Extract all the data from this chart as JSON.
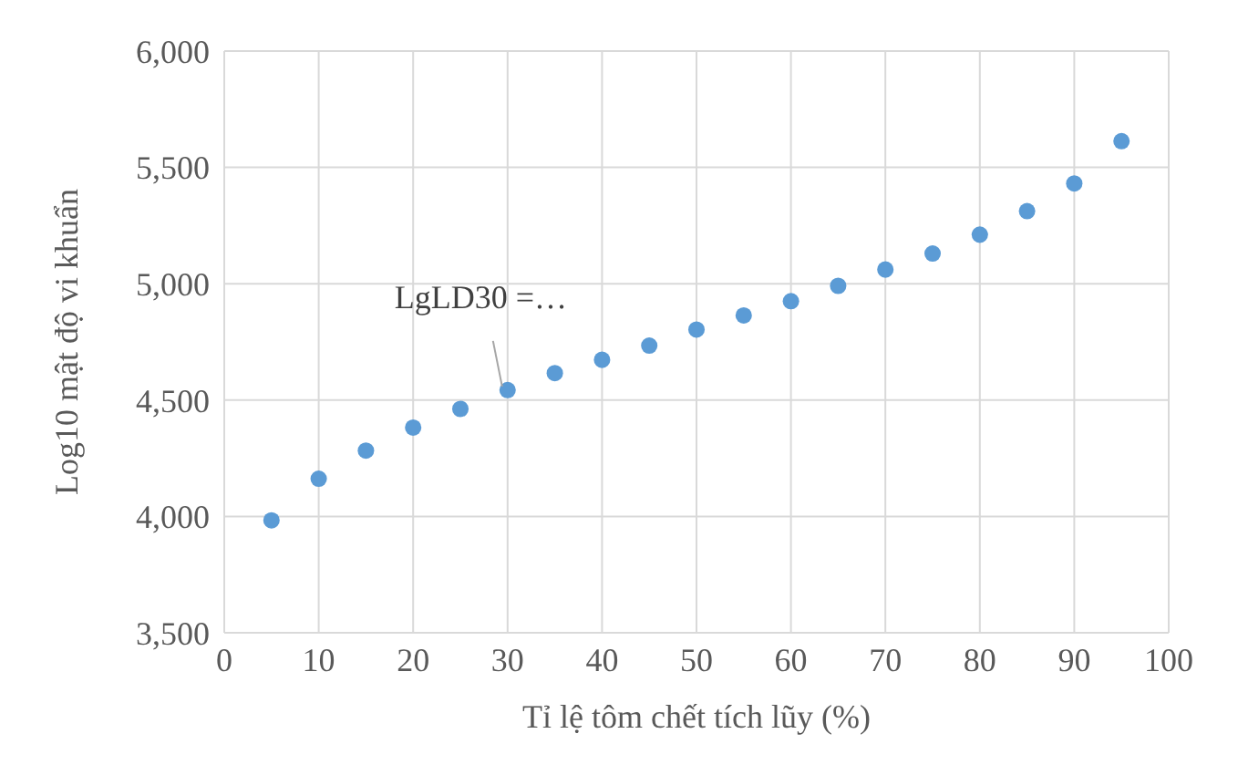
{
  "chart_data": {
    "type": "scatter",
    "xlabel": "Tỉ lệ tôm chết tích lũy (%)",
    "ylabel": "Log10 mật độ vi khuẩn",
    "x": [
      5,
      10,
      15,
      20,
      25,
      30,
      35,
      40,
      45,
      50,
      55,
      60,
      65,
      70,
      75,
      80,
      85,
      90,
      95
    ],
    "series": [
      {
        "color": "#5b9bd5",
        "values": [
          3983,
          4162,
          4283,
          4382,
          4462,
          4543,
          4616,
          4673,
          4734,
          4803,
          4864,
          4925,
          4991,
          5061,
          5130,
          5211,
          5312,
          5431,
          5613
        ]
      }
    ],
    "xlim": [
      0,
      100
    ],
    "xticks": [
      0,
      10,
      20,
      30,
      40,
      50,
      60,
      70,
      80,
      90,
      100
    ],
    "ylim": [
      3500,
      6000
    ],
    "yticks": [
      {
        "value": 3500,
        "label": "3,500"
      },
      {
        "value": 4000,
        "label": "4,000"
      },
      {
        "value": 4500,
        "label": "4,500"
      },
      {
        "value": 5000,
        "label": "5,000"
      },
      {
        "value": 5500,
        "label": "5,500"
      },
      {
        "value": 6000,
        "label": "6,000"
      }
    ],
    "annotations": [
      {
        "text": "LgLD30 =…",
        "x": 30,
        "y": 4543
      }
    ],
    "grid": true,
    "marker": "circle",
    "legend": false
  }
}
